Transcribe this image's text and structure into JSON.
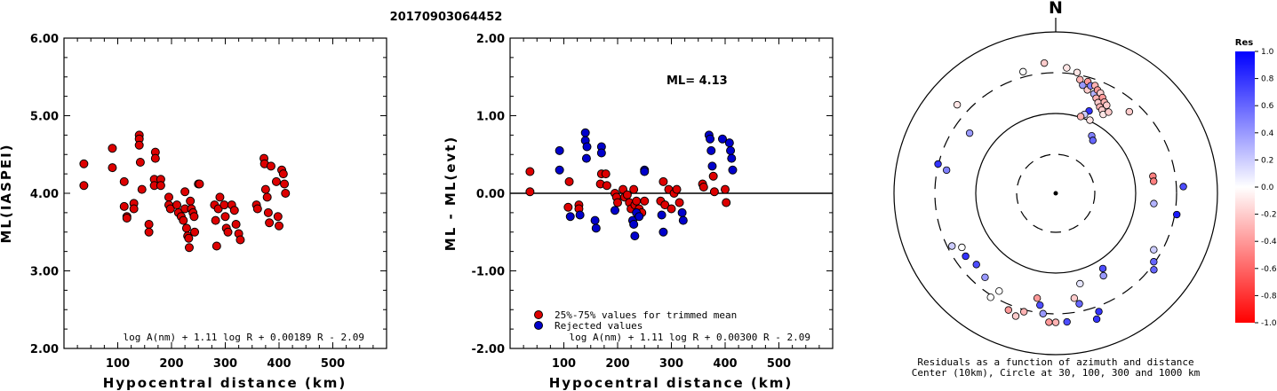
{
  "title": "20170903064452",
  "chart_data": [
    {
      "type": "scatter",
      "xlabel": "Hypocentral distance (km)",
      "ylabel": "ML(IASPEI)",
      "xlim": [
        0,
        600
      ],
      "ylim": [
        2.0,
        6.0
      ],
      "xticks": [
        "100",
        "200",
        "300",
        "400",
        "500"
      ],
      "yticks": [
        "2.00",
        "3.00",
        "4.00",
        "5.00",
        "6.00"
      ],
      "formula": "log A(nm) + 1.11 log R + 0.00189 R - 2.09",
      "series": [
        {
          "color": "#dd0000",
          "points": [
            [
              37,
              4.38
            ],
            [
              37,
              4.1
            ],
            [
              90,
              4.58
            ],
            [
              90,
              4.33
            ],
            [
              112,
              4.15
            ],
            [
              112,
              3.83
            ],
            [
              117,
              3.7
            ],
            [
              117,
              3.68
            ],
            [
              130,
              3.87
            ],
            [
              130,
              3.8
            ],
            [
              140,
              4.75
            ],
            [
              140,
              4.7
            ],
            [
              140,
              4.62
            ],
            [
              142,
              4.4
            ],
            [
              145,
              4.05
            ],
            [
              158,
              3.6
            ],
            [
              158,
              3.5
            ],
            [
              170,
              4.53
            ],
            [
              170,
              4.45
            ],
            [
              168,
              4.18
            ],
            [
              168,
              4.1
            ],
            [
              180,
              4.18
            ],
            [
              180,
              4.1
            ],
            [
              195,
              3.95
            ],
            [
              195,
              3.85
            ],
            [
              198,
              3.8
            ],
            [
              210,
              3.85
            ],
            [
              213,
              3.75
            ],
            [
              218,
              3.7
            ],
            [
              222,
              3.65
            ],
            [
              225,
              4.02
            ],
            [
              225,
              3.8
            ],
            [
              228,
              3.55
            ],
            [
              230,
              3.45
            ],
            [
              232,
              3.42
            ],
            [
              233,
              3.3
            ],
            [
              235,
              3.9
            ],
            [
              237,
              3.8
            ],
            [
              240,
              3.75
            ],
            [
              242,
              3.7
            ],
            [
              243,
              3.5
            ],
            [
              250,
              4.12
            ],
            [
              252,
              4.12
            ],
            [
              280,
              3.85
            ],
            [
              282,
              3.65
            ],
            [
              284,
              3.32
            ],
            [
              287,
              3.8
            ],
            [
              290,
              3.95
            ],
            [
              298,
              3.85
            ],
            [
              300,
              3.7
            ],
            [
              302,
              3.55
            ],
            [
              305,
              3.5
            ],
            [
              312,
              3.85
            ],
            [
              317,
              3.78
            ],
            [
              320,
              3.6
            ],
            [
              325,
              3.48
            ],
            [
              328,
              3.4
            ],
            [
              358,
              3.85
            ],
            [
              360,
              3.8
            ],
            [
              372,
              4.45
            ],
            [
              373,
              4.38
            ],
            [
              375,
              4.05
            ],
            [
              378,
              3.95
            ],
            [
              380,
              3.75
            ],
            [
              382,
              3.62
            ],
            [
              385,
              4.35
            ],
            [
              395,
              4.15
            ],
            [
              398,
              3.7
            ],
            [
              400,
              3.58
            ],
            [
              405,
              4.3
            ],
            [
              408,
              4.25
            ],
            [
              410,
              4.12
            ],
            [
              412,
              4.0
            ]
          ]
        }
      ]
    },
    {
      "type": "scatter",
      "xlabel": "Hypocentral distance (km)",
      "ylabel": "ML - ML(evt)",
      "xlim": [
        0,
        600
      ],
      "ylim": [
        -2.0,
        2.0
      ],
      "xticks": [
        "100",
        "200",
        "300",
        "400",
        "500"
      ],
      "yticks": [
        "-2.00",
        "-1.00",
        "0.00",
        "1.00",
        "2.00"
      ],
      "annotation": "ML= 4.13",
      "formula": "log A(nm) + 1.11 log R + 0.00300 R - 2.09",
      "legend": [
        {
          "label": "25%-75% values for trimmed mean",
          "color": "#dd0000"
        },
        {
          "label": "Rejected values",
          "color": "#0000cc"
        }
      ],
      "series": [
        {
          "name": "25%-75% values for trimmed mean",
          "color": "#dd0000",
          "points": [
            [
              37,
              0.28
            ],
            [
              37,
              0.02
            ],
            [
              108,
              -0.18
            ],
            [
              110,
              0.15
            ],
            [
              128,
              -0.15
            ],
            [
              128,
              -0.2
            ],
            [
              168,
              0.12
            ],
            [
              170,
              0.25
            ],
            [
              178,
              0.25
            ],
            [
              180,
              0.1
            ],
            [
              195,
              0.0
            ],
            [
              198,
              -0.05
            ],
            [
              200,
              -0.12
            ],
            [
              210,
              0.05
            ],
            [
              213,
              -0.05
            ],
            [
              218,
              -0.02
            ],
            [
              222,
              -0.12
            ],
            [
              225,
              -0.2
            ],
            [
              230,
              0.05
            ],
            [
              232,
              -0.15
            ],
            [
              235,
              -0.1
            ],
            [
              240,
              -0.2
            ],
            [
              245,
              -0.25
            ],
            [
              250,
              -0.1
            ],
            [
              280,
              -0.1
            ],
            [
              285,
              0.15
            ],
            [
              288,
              -0.15
            ],
            [
              295,
              0.05
            ],
            [
              300,
              -0.2
            ],
            [
              305,
              0.0
            ],
            [
              310,
              0.05
            ],
            [
              315,
              -0.12
            ],
            [
              358,
              0.12
            ],
            [
              360,
              0.08
            ],
            [
              378,
              0.22
            ],
            [
              380,
              0.02
            ],
            [
              400,
              0.05
            ],
            [
              402,
              -0.12
            ]
          ]
        },
        {
          "name": "Rejected values",
          "color": "#0000cc",
          "points": [
            [
              92,
              0.55
            ],
            [
              92,
              0.3
            ],
            [
              112,
              -0.3
            ],
            [
              130,
              -0.28
            ],
            [
              140,
              0.78
            ],
            [
              140,
              0.68
            ],
            [
              143,
              0.6
            ],
            [
              142,
              0.45
            ],
            [
              158,
              -0.35
            ],
            [
              160,
              -0.45
            ],
            [
              170,
              0.6
            ],
            [
              170,
              0.52
            ],
            [
              195,
              -0.22
            ],
            [
              228,
              -0.35
            ],
            [
              230,
              -0.4
            ],
            [
              232,
              -0.55
            ],
            [
              235,
              -0.25
            ],
            [
              240,
              -0.3
            ],
            [
              250,
              0.3
            ],
            [
              250,
              0.28
            ],
            [
              282,
              -0.28
            ],
            [
              285,
              -0.5
            ],
            [
              320,
              -0.25
            ],
            [
              322,
              -0.35
            ],
            [
              370,
              0.75
            ],
            [
              372,
              0.7
            ],
            [
              374,
              0.55
            ],
            [
              376,
              0.35
            ],
            [
              395,
              0.7
            ],
            [
              408,
              0.65
            ],
            [
              410,
              0.55
            ],
            [
              412,
              0.45
            ],
            [
              414,
              0.3
            ]
          ]
        }
      ]
    },
    {
      "type": "polar-scatter",
      "north_label": "N",
      "caption_line1": "Residuals as a function of azimuth and distance",
      "caption_line2": "Center (10km), Circle at 30, 100, 300 and 1000 km",
      "colorbar_title": "Res",
      "colorbar_ticks": [
        "1.0",
        "0.8",
        "0.6",
        "0.4",
        "0.2",
        "0.0",
        "-0.2",
        "-0.4",
        "-0.6",
        "-0.8",
        "-1.0"
      ],
      "points": [
        [
          -15,
          0.78,
          0.0
        ],
        [
          -5,
          0.81,
          -0.2
        ],
        [
          5,
          0.78,
          -0.1
        ],
        [
          10,
          0.76,
          -0.1
        ],
        [
          12,
          0.72,
          -0.3
        ],
        [
          14,
          0.69,
          0.4
        ],
        [
          16,
          0.72,
          -0.4
        ],
        [
          17,
          0.67,
          -0.2
        ],
        [
          18,
          0.7,
          0.5
        ],
        [
          20,
          0.71,
          -0.3
        ],
        [
          21,
          0.66,
          0.3
        ],
        [
          22,
          0.69,
          -0.4
        ],
        [
          23,
          0.64,
          -0.3
        ],
        [
          24,
          0.68,
          -0.2
        ],
        [
          25,
          0.62,
          -0.2
        ],
        [
          26,
          0.66,
          -0.4
        ],
        [
          27,
          0.6,
          -0.3
        ],
        [
          28,
          0.64,
          -0.3
        ],
        [
          29,
          0.59,
          -0.2
        ],
        [
          30,
          0.63,
          -0.2
        ],
        [
          31,
          0.57,
          -0.1
        ],
        [
          33,
          0.6,
          -0.2
        ],
        [
          22,
          0.55,
          0.8
        ],
        [
          20,
          0.52,
          0.2
        ],
        [
          18,
          0.5,
          -0.3
        ],
        [
          25,
          0.5,
          -0.1
        ],
        [
          32,
          0.42,
          0.5
        ],
        [
          35,
          0.4,
          0.6
        ],
        [
          42,
          0.68,
          -0.2
        ],
        [
          80,
          0.61,
          -0.5
        ],
        [
          83,
          0.61,
          -0.5
        ],
        [
          87,
          0.79,
          0.7
        ],
        [
          100,
          0.76,
          0.9
        ],
        [
          96,
          0.61,
          0.3
        ],
        [
          120,
          0.7,
          0.2
        ],
        [
          125,
          0.74,
          0.6
        ],
        [
          128,
          0.77,
          0.6
        ],
        [
          148,
          0.55,
          0.7
        ],
        [
          150,
          0.59,
          0.4
        ],
        [
          165,
          0.58,
          0.1
        ],
        [
          170,
          0.66,
          -0.2
        ],
        [
          168,
          0.7,
          0.6
        ],
        [
          160,
          0.78,
          0.8
        ],
        [
          162,
          0.82,
          0.8
        ],
        [
          175,
          0.8,
          0.7
        ],
        [
          180,
          0.8,
          -0.3
        ],
        [
          183,
          0.8,
          -0.4
        ],
        [
          186,
          0.75,
          0.4
        ],
        [
          188,
          0.7,
          0.7
        ],
        [
          190,
          0.66,
          -0.4
        ],
        [
          195,
          0.76,
          -0.3
        ],
        [
          198,
          0.8,
          -0.2
        ],
        [
          202,
          0.78,
          -0.4
        ],
        [
          210,
          0.7,
          0.0
        ],
        [
          212,
          0.76,
          0.0
        ],
        [
          220,
          0.68,
          0.4
        ],
        [
          228,
          0.66,
          0.7
        ],
        [
          235,
          0.68,
          0.8
        ],
        [
          240,
          0.67,
          0.0
        ],
        [
          243,
          0.72,
          0.2
        ],
        [
          282,
          0.69,
          0.5
        ],
        [
          284,
          0.75,
          0.8
        ],
        [
          305,
          0.65,
          0.4
        ],
        [
          312,
          0.82,
          -0.1
        ]
      ]
    }
  ]
}
